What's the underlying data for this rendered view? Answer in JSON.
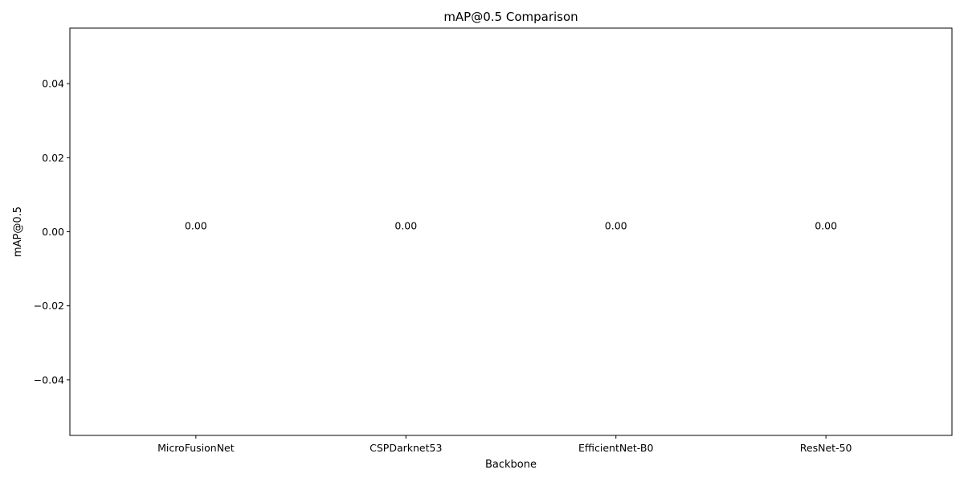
{
  "chart_data": {
    "type": "bar",
    "title": "mAP@0.5 Comparison",
    "xlabel": "Backbone",
    "ylabel": "mAP@0.5",
    "categories": [
      "MicroFusionNet",
      "CSPDarknet53",
      "EfficientNet-B0",
      "ResNet-50"
    ],
    "values": [
      0,
      0,
      0,
      0
    ],
    "data_labels": [
      "0.00",
      "0.00",
      "0.00",
      "0.00"
    ],
    "ylim": [
      -0.055,
      0.055
    ],
    "yticks": [
      -0.04,
      -0.02,
      0.0,
      0.02,
      0.04
    ],
    "ytick_labels": [
      "−0.04",
      "−0.02",
      "0.00",
      "0.02",
      "0.04"
    ],
    "grid": false,
    "bar_color": "#1f77b4"
  }
}
